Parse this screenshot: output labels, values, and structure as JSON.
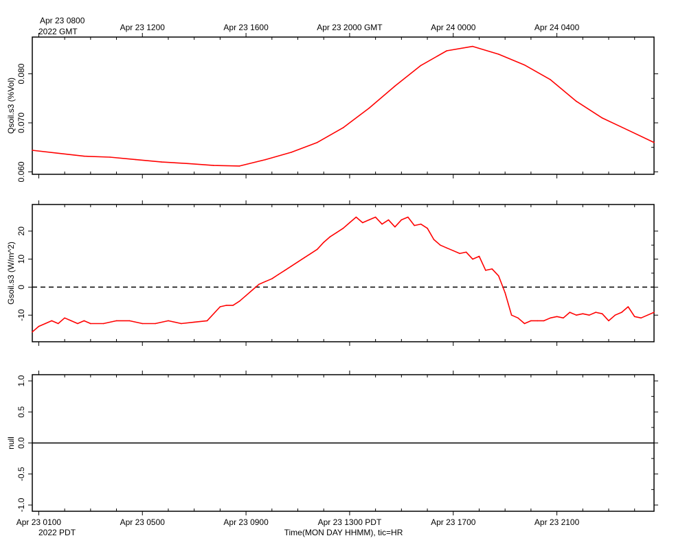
{
  "top_axis": {
    "labels": [
      "Apr 23 0800",
      "Apr 23 1200",
      "Apr 23 1600",
      "Apr 23 2000 GMT",
      "Apr 24 0000",
      "Apr 24 0400"
    ],
    "year_label": "2022 GMT"
  },
  "bottom_axis": {
    "labels": [
      "Apr 23 0100",
      "Apr 23 0500",
      "Apr 23 0900",
      "Apr 23 1300 PDT",
      "Apr 23 1700",
      "Apr 23 2100"
    ],
    "year_label": "2022 PDT",
    "title": "Time(MON DAY HHMM), tic=HR"
  },
  "colors": {
    "series": "#ff0000",
    "axis": "#000000",
    "zero_line": "#000000"
  },
  "chart_data": [
    {
      "type": "line",
      "ylabel": "Qsoil.s3 (%Vol)",
      "ylim": [
        0.0595,
        0.0875
      ],
      "yticks": [
        0.06,
        0.07,
        0.08
      ],
      "ytick_labels": [
        "0.060",
        "0.070",
        "0.080"
      ],
      "xlim": [
        -0.25,
        23.75
      ],
      "x_unit": "hours after Apr 23 0100 PDT",
      "series": [
        {
          "x": [
            -0.25,
            0.75,
            1.75,
            2.75,
            3.75,
            4.75,
            5.75,
            6.75,
            7.75,
            8.75,
            9.75,
            10.75,
            11.75,
            12.75,
            13.75,
            14.75,
            15.75,
            16.75,
            17.75,
            18.75,
            19.75,
            20.75,
            21.75,
            22.75,
            23.75
          ],
          "y": [
            0.0644,
            0.0638,
            0.0632,
            0.063,
            0.0625,
            0.062,
            0.0617,
            0.0613,
            0.0612,
            0.0625,
            0.064,
            0.066,
            0.069,
            0.073,
            0.0775,
            0.0817,
            0.0847,
            0.0856,
            0.084,
            0.0818,
            0.0788,
            0.0744,
            0.071,
            0.0685,
            0.066
          ]
        }
      ]
    },
    {
      "type": "line",
      "ylabel": "Gsoil.s3 (W/m^2)",
      "ylim": [
        -19.5,
        29.5
      ],
      "yticks": [
        -10,
        0,
        10,
        20
      ],
      "ytick_labels": [
        "-10",
        "0",
        "10",
        "20"
      ],
      "xlim": [
        -0.25,
        23.75
      ],
      "reference_line": {
        "y": 0,
        "style": "dashed"
      },
      "series": [
        {
          "x": [
            -0.25,
            0.0,
            0.25,
            0.5,
            0.75,
            1.0,
            1.25,
            1.5,
            1.75,
            2.0,
            2.5,
            3.0,
            3.5,
            4.0,
            4.5,
            5.0,
            5.5,
            6.0,
            6.5,
            7.0,
            7.25,
            7.5,
            7.75,
            8.0,
            8.25,
            8.5,
            8.75,
            9.0,
            9.25,
            9.5,
            9.75,
            10.0,
            10.25,
            10.5,
            10.75,
            11.0,
            11.25,
            11.5,
            11.75,
            12.0,
            12.25,
            12.5,
            12.75,
            13.0,
            13.25,
            13.5,
            13.75,
            14.0,
            14.25,
            14.5,
            14.75,
            15.0,
            15.25,
            15.5,
            15.75,
            16.0,
            16.25,
            16.5,
            16.75,
            17.0,
            17.25,
            17.5,
            17.75,
            18.0,
            18.25,
            18.5,
            18.75,
            19.0,
            19.25,
            19.5,
            19.75,
            20.0,
            20.25,
            20.5,
            20.75,
            21.0,
            21.25,
            21.5,
            21.75,
            22.0,
            22.25,
            22.5,
            22.75,
            23.0,
            23.25,
            23.5,
            23.75
          ],
          "y": [
            -16,
            -14,
            -13,
            -12,
            -13,
            -11,
            -12,
            -13,
            -12,
            -13,
            -13,
            -12,
            -12,
            -13,
            -13,
            -12,
            -13,
            -12.5,
            -12,
            -7,
            -6.5,
            -6.5,
            -5,
            -3,
            -1,
            1,
            2,
            3,
            4.5,
            6,
            7.5,
            9,
            10.5,
            12,
            13.5,
            16,
            18,
            19.5,
            21,
            23,
            25,
            23,
            24,
            25,
            22.5,
            24,
            21.5,
            24,
            25,
            22,
            22.5,
            21,
            17,
            15,
            14,
            13,
            12,
            12.5,
            10,
            11,
            6,
            6.5,
            4,
            -2,
            -10,
            -11,
            -13,
            -12,
            -12,
            -12,
            -11,
            -10.5,
            -11,
            -9,
            -10,
            -9.5,
            -10,
            -9,
            -9.5,
            -12,
            -10,
            -9,
            -7,
            -10.5,
            -11,
            -10,
            -9
          ]
        }
      ]
    },
    {
      "type": "line",
      "ylabel": "null",
      "ylim": [
        -1.1,
        1.1
      ],
      "yticks": [
        -1.0,
        -0.5,
        0.0,
        0.5,
        1.0
      ],
      "ytick_labels": [
        "-1.0",
        "-0.5",
        "0.0",
        "0.5",
        "1.0"
      ],
      "xlim": [
        -0.25,
        23.75
      ],
      "reference_line": {
        "y": 0,
        "style": "solid"
      },
      "series": []
    }
  ]
}
